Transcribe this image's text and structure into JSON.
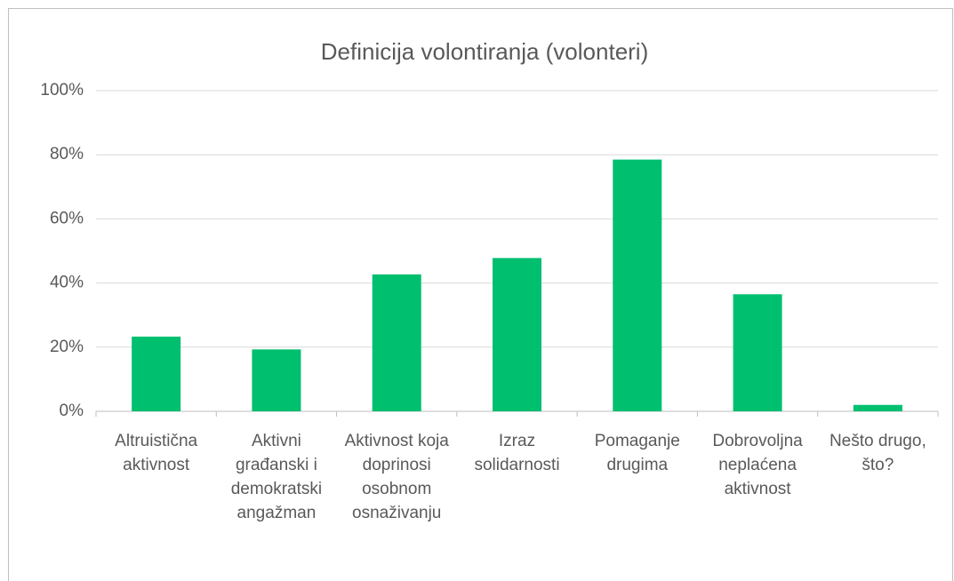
{
  "chart_data": {
    "type": "bar",
    "title": "Definicija volontiranja (volonteri)",
    "categories": [
      "Altruistična aktivnost",
      "Aktivni građanski i demokratski angažman",
      "Aktivnost koja doprinosi osobnom osnaživanju",
      "Izraz solidarnosti",
      "Pomaganje drugima",
      "Dobrovoljna neplaćena aktivnost",
      "Nešto drugo, što?"
    ],
    "values": [
      23.3,
      19.3,
      42.7,
      47.8,
      78.5,
      36.5,
      2
    ],
    "color": "#00bf6f",
    "ylim": [
      0,
      100
    ],
    "yticks": [
      {
        "value": 0,
        "label": "0%"
      },
      {
        "value": 20,
        "label": "20%"
      },
      {
        "value": 40,
        "label": "40%"
      },
      {
        "value": 60,
        "label": "60%"
      },
      {
        "value": 80,
        "label": "80%"
      },
      {
        "value": 100,
        "label": "100%"
      }
    ],
    "grid": true
  }
}
